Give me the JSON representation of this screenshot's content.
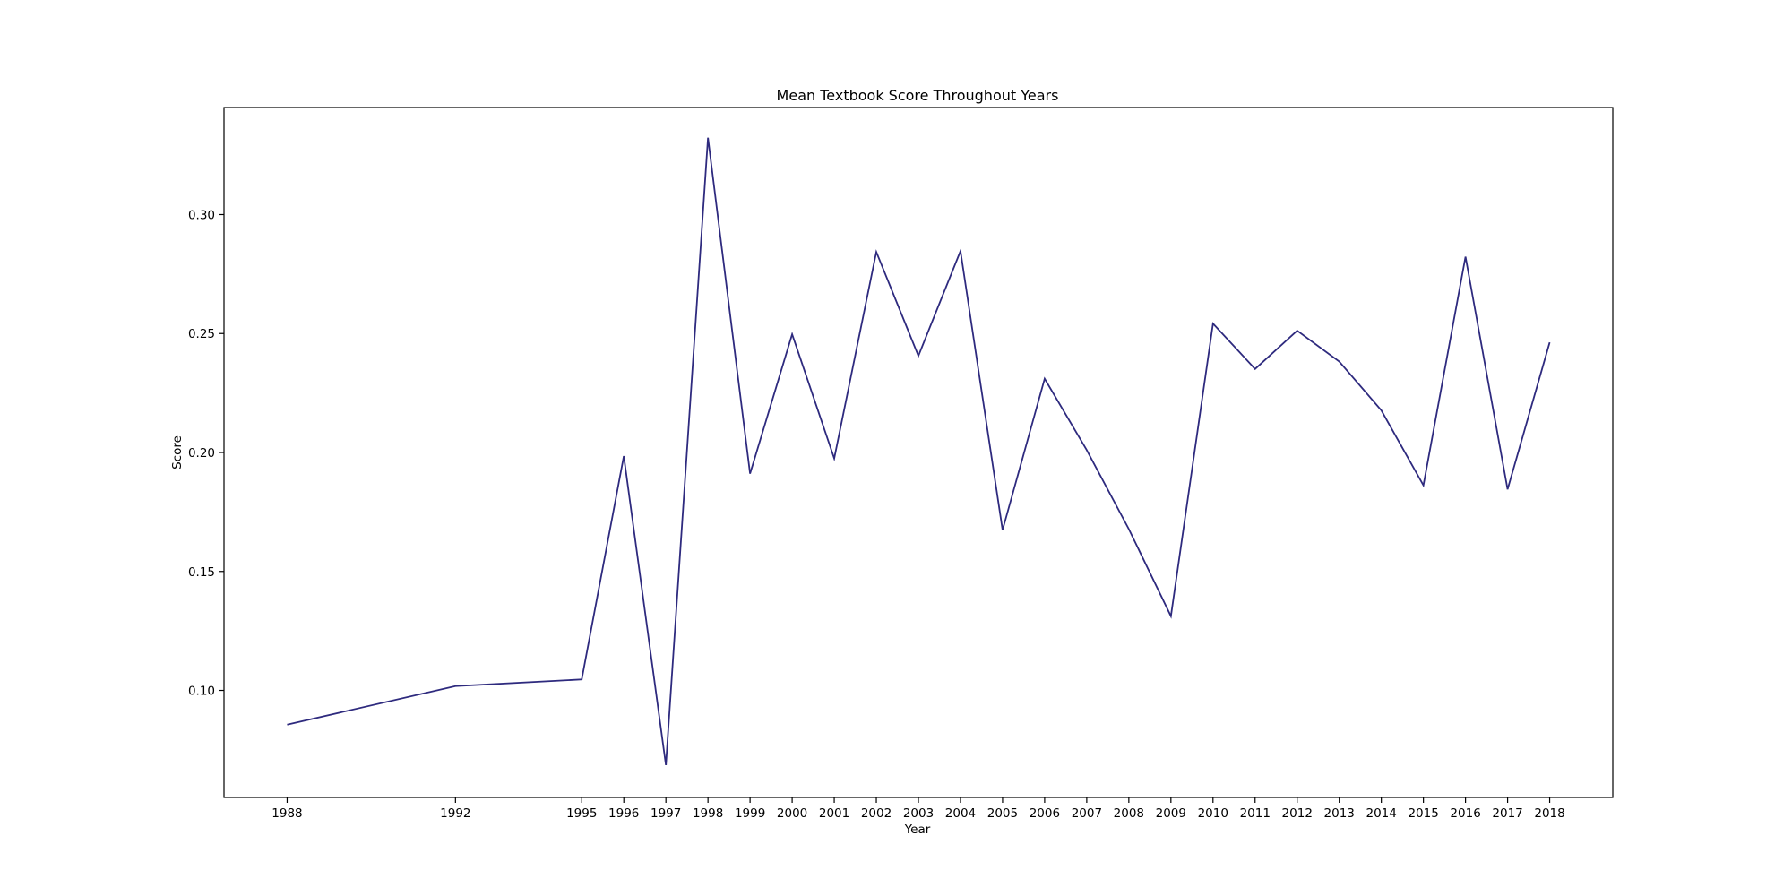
{
  "chart_data": {
    "type": "line",
    "title": "Mean Textbook Score Throughout Years",
    "xlabel": "Year",
    "ylabel": "Score",
    "x": [
      1988,
      1992,
      1995,
      1996,
      1997,
      1998,
      1999,
      2000,
      2001,
      2002,
      2003,
      2004,
      2005,
      2006,
      2007,
      2008,
      2009,
      2010,
      2011,
      2012,
      2013,
      2014,
      2015,
      2016,
      2017,
      2018
    ],
    "x_ticks": [
      "1988",
      "1992",
      "1995",
      "1996",
      "1997",
      "1998",
      "1999",
      "2000",
      "2001",
      "2002",
      "2003",
      "2004",
      "2005",
      "2006",
      "2007",
      "2008",
      "2009",
      "2010",
      "2011",
      "2012",
      "2013",
      "2014",
      "2015",
      "2016",
      "2017",
      "2018"
    ],
    "y_ticks": [
      "0.10",
      "0.15",
      "0.20",
      "0.25",
      "0.30"
    ],
    "y_tick_values": [
      0.1,
      0.15,
      0.2,
      0.25,
      0.3
    ],
    "series": [
      {
        "values": [
          0.0856,
          0.1018,
          0.1046,
          0.1985,
          0.0686,
          0.3323,
          0.1911,
          0.2497,
          0.1975,
          0.2843,
          0.2406,
          0.2847,
          0.1674,
          0.231,
          0.201,
          0.1678,
          0.1312,
          0.2542,
          0.2351,
          0.2512,
          0.2382,
          0.2177,
          0.1862,
          0.2823,
          0.1845,
          0.2463
        ],
        "color": "#2e2a7e"
      }
    ],
    "xlim": [
      1986.5,
      2019.5
    ],
    "ylim": [
      0.055,
      0.345
    ],
    "grid": false,
    "legend": "none"
  }
}
